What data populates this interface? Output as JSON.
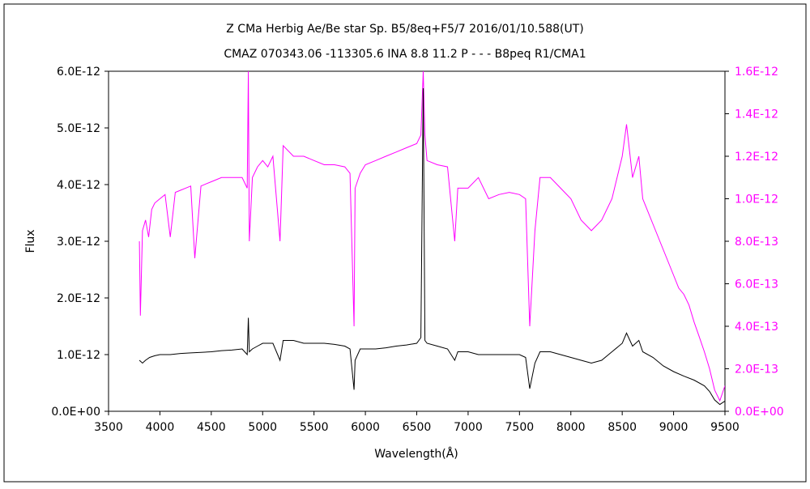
{
  "chart_data": {
    "type": "line",
    "title_line1": "Z CMa    Herbig Ae/Be star    Sp. B5/8eq+F5/7    2016/01/10.588(UT)",
    "title_line2": "CMAZ 070343.06 -113305.6 INA 8.8 11.2 P - - - B8peq R1/CMA1",
    "xlabel": "Wavelength(Å)",
    "ylabel": "Flux",
    "xlim": [
      3500,
      9500
    ],
    "ylim_left": [
      0,
      6e-12
    ],
    "ylim_right": [
      0,
      1.6e-12
    ],
    "x_ticks": [
      "3500",
      "4000",
      "4500",
      "5000",
      "5500",
      "6000",
      "6500",
      "7000",
      "7500",
      "8000",
      "8500",
      "9000",
      "9500"
    ],
    "y_ticks_left": [
      "0.0E+00",
      "1.0E-12",
      "2.0E-12",
      "3.0E-12",
      "4.0E-12",
      "5.0E-12",
      "6.0E-12"
    ],
    "y_ticks_right": [
      "0.0E+00",
      "2.0E-13",
      "4.0E-13",
      "6.0E-13",
      "8.0E-13",
      "1.0E-12",
      "1.2E-12",
      "1.4E-12",
      "1.6E-12"
    ],
    "grid": false,
    "series": [
      {
        "axis": "left",
        "color": "#000000",
        "x": [
          3800,
          3830,
          3860,
          3900,
          3950,
          4000,
          4100,
          4200,
          4300,
          4400,
          4500,
          4600,
          4700,
          4800,
          4850,
          4861,
          4870,
          4900,
          4950,
          5000,
          5100,
          5169,
          5200,
          5300,
          5400,
          5500,
          5600,
          5700,
          5800,
          5850,
          5890,
          5900,
          5950,
          6000,
          6100,
          6200,
          6300,
          6400,
          6500,
          6540,
          6563,
          6580,
          6600,
          6700,
          6800,
          6870,
          6900,
          7000,
          7100,
          7200,
          7300,
          7400,
          7500,
          7560,
          7600,
          7650,
          7700,
          7800,
          7900,
          8000,
          8100,
          8200,
          8300,
          8400,
          8500,
          8542,
          8600,
          8662,
          8700,
          8800,
          8900,
          9000,
          9100,
          9200,
          9300,
          9350,
          9400,
          9450,
          9500
        ],
        "y": [
          9e-13,
          8.5e-13,
          9e-13,
          9.5e-13,
          9.8e-13,
          1e-12,
          1e-12,
          1.02e-12,
          1.03e-12,
          1.04e-12,
          1.05e-12,
          1.07e-12,
          1.08e-12,
          1.1e-12,
          1e-12,
          1.65e-12,
          1.05e-12,
          1.1e-12,
          1.15e-12,
          1.2e-12,
          1.2e-12,
          9e-13,
          1.25e-12,
          1.25e-12,
          1.2e-12,
          1.2e-12,
          1.2e-12,
          1.18e-12,
          1.15e-12,
          1.1e-12,
          3.8e-13,
          9e-13,
          1.1e-12,
          1.1e-12,
          1.1e-12,
          1.12e-12,
          1.15e-12,
          1.17e-12,
          1.2e-12,
          1.3e-12,
          5.7e-12,
          1.25e-12,
          1.2e-12,
          1.15e-12,
          1.1e-12,
          9e-13,
          1.05e-12,
          1.05e-12,
          1e-12,
          1e-12,
          1e-12,
          1e-12,
          1e-12,
          9.5e-13,
          4e-13,
          8.5e-13,
          1.05e-12,
          1.05e-12,
          1e-12,
          9.5e-13,
          9e-13,
          8.5e-13,
          9e-13,
          1.05e-12,
          1.2e-12,
          1.38e-12,
          1.15e-12,
          1.25e-12,
          1.05e-12,
          9.5e-13,
          8e-13,
          7e-13,
          6.2e-13,
          5.5e-13,
          4.5e-13,
          3.5e-13,
          2e-13,
          1.2e-13,
          1.8e-13
        ]
      },
      {
        "axis": "right",
        "color": "#ff00ff",
        "x": [
          3800,
          3810,
          3830,
          3860,
          3890,
          3920,
          3950,
          4000,
          4050,
          4101,
          4150,
          4200,
          4250,
          4300,
          4340,
          4400,
          4450,
          4500,
          4550,
          4600,
          4700,
          4800,
          4850,
          4861,
          4870,
          4900,
          4950,
          5000,
          5050,
          5100,
          5169,
          5200,
          5300,
          5400,
          5500,
          5600,
          5700,
          5800,
          5850,
          5890,
          5900,
          5950,
          6000,
          6100,
          6200,
          6300,
          6400,
          6500,
          6540,
          6563,
          6580,
          6600,
          6700,
          6800,
          6870,
          6900,
          7000,
          7100,
          7200,
          7300,
          7400,
          7500,
          7560,
          7600,
          7650,
          7700,
          7800,
          7900,
          8000,
          8100,
          8200,
          8300,
          8400,
          8500,
          8542,
          8600,
          8662,
          8700,
          8800,
          8900,
          9000,
          9050,
          9100,
          9150,
          9200,
          9250,
          9300,
          9350,
          9400,
          9450,
          9500
        ],
        "y": [
          8e-13,
          4.5e-13,
          8.5e-13,
          9e-13,
          8.2e-13,
          9.5e-13,
          9.8e-13,
          1e-12,
          1.02e-12,
          8.2e-13,
          1.03e-12,
          1.04e-12,
          1.05e-12,
          1.06e-12,
          7.2e-13,
          1.06e-12,
          1.07e-12,
          1.08e-12,
          1.09e-12,
          1.1e-12,
          1.1e-12,
          1.1e-12,
          1.05e-12,
          1.6e-12,
          8e-13,
          1.1e-12,
          1.15e-12,
          1.18e-12,
          1.15e-12,
          1.2e-12,
          8e-13,
          1.25e-12,
          1.2e-12,
          1.2e-12,
          1.18e-12,
          1.16e-12,
          1.16e-12,
          1.15e-12,
          1.12e-12,
          4e-13,
          1.05e-12,
          1.12e-12,
          1.16e-12,
          1.18e-12,
          1.2e-12,
          1.22e-12,
          1.24e-12,
          1.26e-12,
          1.3e-12,
          1.6e-12,
          1.3e-12,
          1.18e-12,
          1.16e-12,
          1.15e-12,
          8e-13,
          1.05e-12,
          1.05e-12,
          1.1e-12,
          1e-12,
          1.02e-12,
          1.03e-12,
          1.02e-12,
          1e-12,
          4e-13,
          8.5e-13,
          1.1e-12,
          1.1e-12,
          1.05e-12,
          1e-12,
          9e-13,
          8.5e-13,
          9e-13,
          1e-12,
          1.2e-12,
          1.35e-12,
          1.1e-12,
          1.2e-12,
          1e-12,
          8.8e-13,
          7.6e-13,
          6.4e-13,
          5.8e-13,
          5.5e-13,
          5e-13,
          4.2e-13,
          3.5e-13,
          2.8e-13,
          2e-13,
          1e-13,
          5e-14,
          1.2e-13
        ]
      }
    ]
  }
}
